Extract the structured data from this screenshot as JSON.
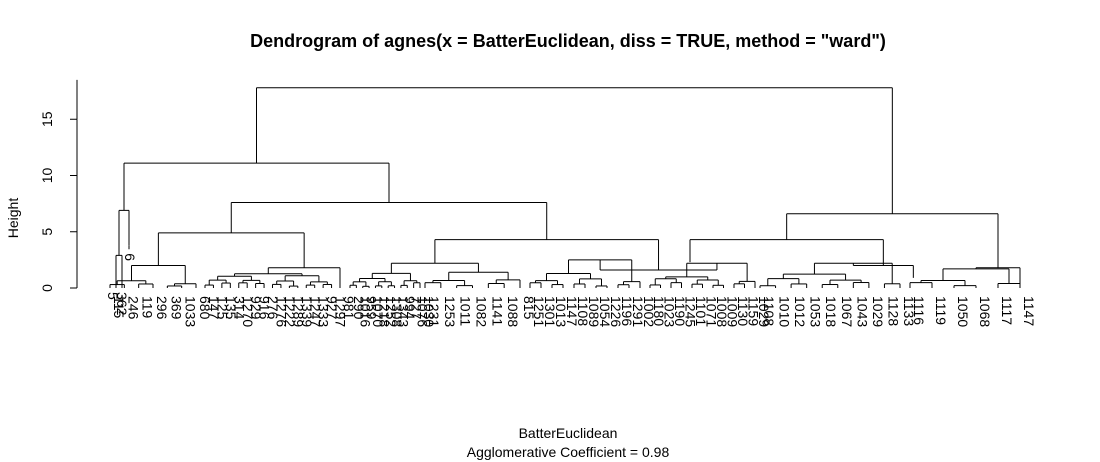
{
  "chart_data": {
    "type": "dendrogram",
    "title": "Dendrogram of  agnes(x = BatterEuclidean, diss = TRUE, method = \"ward\")",
    "xlabel": "BatterEuclidean",
    "sublabel": "Agglomerative Coefficient =  0.98",
    "ylabel": "Height",
    "ylim": [
      0,
      18
    ],
    "yticks": [
      "0",
      "5",
      "10",
      "15"
    ],
    "heights": {
      "root": 17.8,
      "left_top": 11.1,
      "outlier_pair": 6.9,
      "pair_5_362": 2.9,
      "mid_cluster": 7.6,
      "cluster_a": 4.9,
      "cluster_b": 4.3,
      "right_top": 6.6,
      "right_a": 4.3,
      "right_b": 1.8
    },
    "leaves": {
      "outliers": [
        "5",
        "362"
      ],
      "single": "6",
      "group1": [
        "115",
        "246",
        "119",
        "296",
        "369",
        "1033",
        "680"
      ],
      "group2": [
        "147",
        "125",
        "135",
        "314",
        "1270",
        "929",
        "916",
        "276",
        "1276",
        "1222",
        "1289",
        "1339",
        "1247",
        "1333",
        "927",
        "1297",
        "981"
      ],
      "group3": [
        "290",
        "1016",
        "959",
        "1070",
        "1218",
        "1252",
        "1308",
        "1343",
        "994",
        "727",
        "1076",
        "1030"
      ],
      "group4": [
        "1231",
        "1253",
        "1011",
        "1082",
        "1141",
        "1088",
        "815"
      ],
      "group5": [
        "1251",
        "1301",
        "1013",
        "1147",
        "1108",
        "1089",
        "1054",
        "1226",
        "1196",
        "1291",
        "1002"
      ],
      "group6": [
        "1180",
        "1023",
        "1190",
        "1245",
        "1101",
        "1071",
        "1008",
        "1009",
        "1130",
        "1159",
        "1029"
      ],
      "group7": [
        "1108",
        "1010",
        "1012",
        "1053",
        "1018",
        "1067",
        "1043",
        "1029",
        "1128",
        "1133"
      ],
      "group8": [
        "1116",
        "1119",
        "1050",
        "1068",
        "1117",
        "1147"
      ]
    }
  }
}
